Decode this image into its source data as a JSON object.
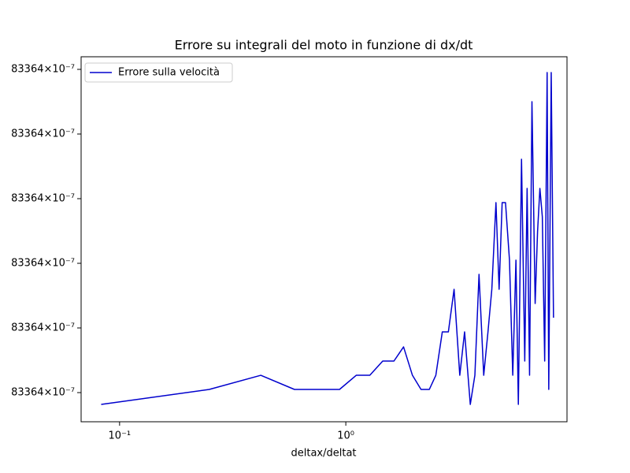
{
  "chart_data": {
    "type": "line",
    "title": "Errore su integrali del moto in funzione di dx/dt",
    "xlabel": "deltax/deltat",
    "xscale": "log",
    "xlim": [
      0.0676,
      9.5
    ],
    "xticks": [
      {
        "value": 0.1,
        "label": "10⁻¹"
      },
      {
        "value": 1,
        "label": "10⁰"
      }
    ],
    "ylim": [
      0.549,
      6.195
    ],
    "yticks": [
      {
        "value": 1,
        "label": "83364×10⁻⁷"
      },
      {
        "value": 2,
        "label": "83364×10⁻⁷"
      },
      {
        "value": 3,
        "label": "83364×10⁻⁷"
      },
      {
        "value": 4,
        "label": "83364×10⁻⁷"
      },
      {
        "value": 5,
        "label": "83364×10⁻⁷"
      },
      {
        "value": 6,
        "label": "83364×10⁻⁷"
      }
    ],
    "legend": "upper left",
    "x": [
      0.0829,
      0.249,
      0.421,
      0.593,
      0.938,
      1.112,
      1.277,
      1.456,
      1.632,
      1.8,
      1.97,
      2.15,
      2.34,
      2.5,
      2.67,
      2.84,
      3.01,
      3.19,
      3.35,
      3.55,
      3.72,
      3.88,
      4.07,
      4.25,
      4.42,
      4.61,
      4.76,
      4.91,
      5.08,
      5.29,
      5.47,
      5.65,
      5.79,
      5.98,
      6.18,
      6.33,
      6.49,
      6.65,
      6.87,
      7.04,
      7.21,
      7.39,
      7.57,
      7.76,
      7.89,
      8.09,
      8.28
    ],
    "series": [
      {
        "name": "Errore sulla velocità",
        "color": "#0000cd",
        "values": [
          0.817,
          1.049,
          1.268,
          1.049,
          1.049,
          1.268,
          1.268,
          1.488,
          1.488,
          1.707,
          1.268,
          1.049,
          1.049,
          1.268,
          1.939,
          1.939,
          2.598,
          1.268,
          1.939,
          0.817,
          1.268,
          2.829,
          1.268,
          1.939,
          2.598,
          3.939,
          2.598,
          3.939,
          3.939,
          3.049,
          1.268,
          3.049,
          0.817,
          4.61,
          1.488,
          4.159,
          1.268,
          5.5,
          2.378,
          3.488,
          4.159,
          3.72,
          1.488,
          5.951,
          1.049,
          5.951,
          2.159
        ]
      }
    ]
  }
}
